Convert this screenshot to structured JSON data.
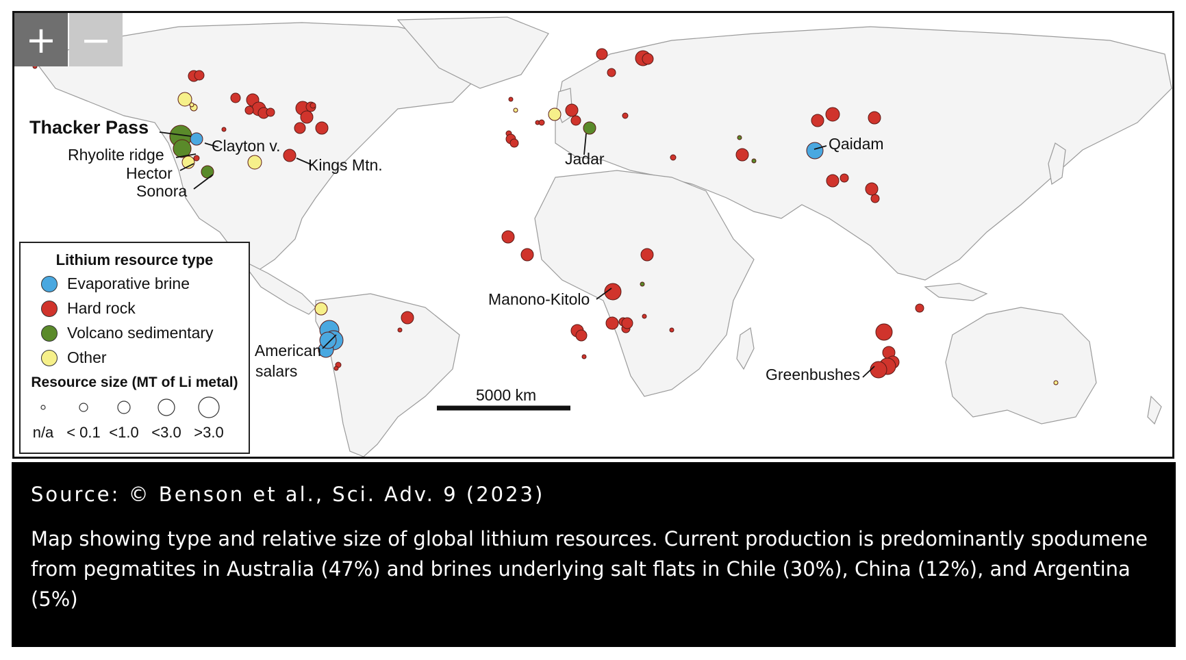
{
  "map": {
    "zoom_in_label": "+",
    "zoom_out_label": "−",
    "scale_bar_label": "5000 km",
    "colors": {
      "evaporative_brine": "#4aa8e0",
      "hard_rock": "#d0342c",
      "volcano_sedimentary": "#5a8a2a",
      "other": "#f6f08a",
      "land": "#f4f4f4",
      "ocean": "#ffffff"
    },
    "labels": {
      "thacker_pass": "Thacker Pass",
      "clayton_valley": "Clayton v.",
      "rhyolite_ridge": "Rhyolite ridge",
      "hector": "Hector",
      "sonora": "Sonora",
      "kings_mtn": "Kings Mtn.",
      "jadar": "Jadar",
      "qaidam": "Qaidam",
      "manono_kitolo": "Manono-Kitolo",
      "s_american_salars_line1": "S. American",
      "s_american_salars_line2": "salars",
      "greenbushes": "Greenbushes"
    }
  },
  "legend": {
    "title": "Lithium resource type",
    "types": [
      {
        "label": "Evaporative brine",
        "color": "#4aa8e0"
      },
      {
        "label": "Hard rock",
        "color": "#d0342c"
      },
      {
        "label": "Volcano sedimentary",
        "color": "#5a8a2a"
      },
      {
        "label": "Other",
        "color": "#f6f08a"
      }
    ],
    "size_title": "Resource size (MT of Li metal)",
    "sizes": [
      {
        "label": "n/a"
      },
      {
        "label": "< 0.1"
      },
      {
        "label": "<1.0"
      },
      {
        "label": "<3.0"
      },
      {
        "label": ">3.0"
      }
    ]
  },
  "caption": {
    "source": "Source: © Benson et al., Sci. Adv. 9 (2023)",
    "text": "Map showing type and relative size of global lithium resources. Current production is predominantly spodumene from pegmatites in Australia (47%) and brines underlying salt flats in Chile (30%), China (12%), and Argentina (5%)"
  }
}
